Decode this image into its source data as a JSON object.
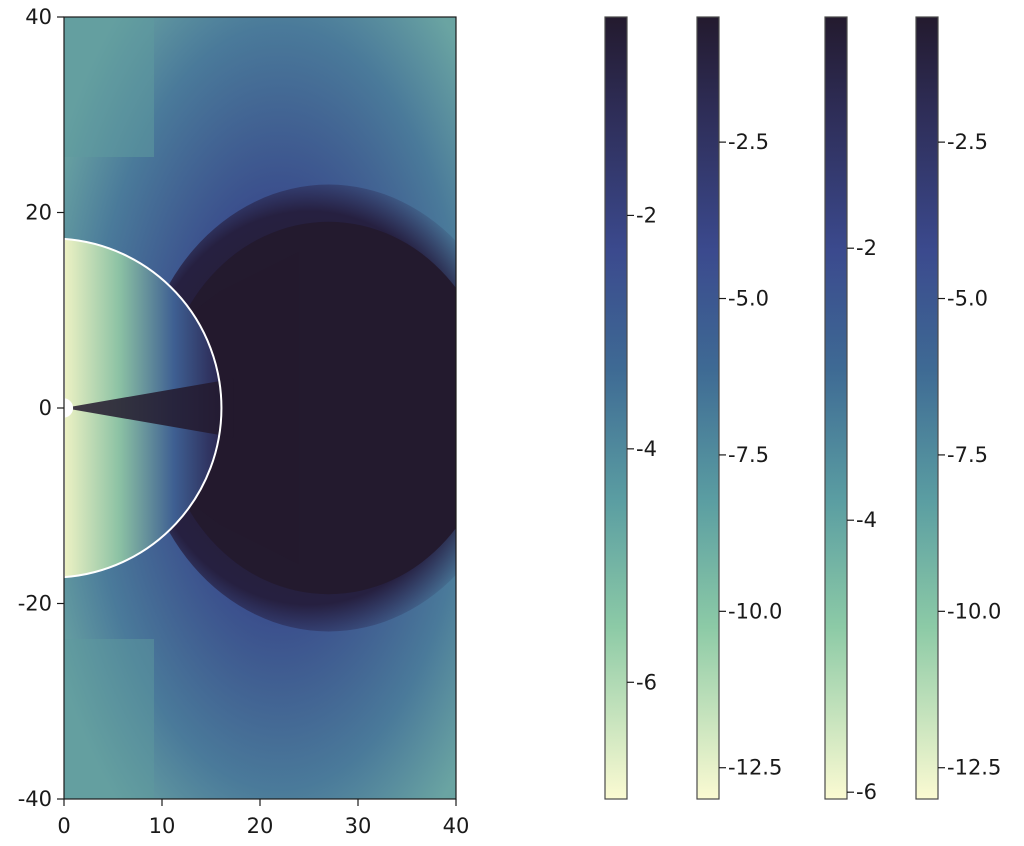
{
  "chart_data": [
    {
      "type": "heatmap",
      "title": "",
      "xlabel": "",
      "ylabel": "",
      "xlim": [
        0,
        40
      ],
      "ylim": [
        -40,
        40
      ],
      "xticks": [
        0,
        10,
        20,
        30,
        40
      ],
      "xtick_labels": [
        "0",
        "10",
        "20",
        "30",
        "40"
      ],
      "yticks": [
        40,
        20,
        0,
        -20,
        -40
      ],
      "ytick_labels": [
        "40",
        "20",
        "0",
        "-20",
        "-40"
      ],
      "colormap": "yellow-green-blue-dark (cmocean deep, reversed)",
      "features": {
        "inner_region_boundary_radius": 17.3,
        "central_hole_radius": 1.0,
        "dark_jet_lobe": {
          "center_x": 27,
          "center_y": 0,
          "radius_x": 17,
          "radius_y": 19
        }
      }
    },
    {
      "type": "colorbar",
      "range": [
        -7,
        -0.3
      ],
      "ticks": [
        -2,
        -4,
        -6
      ],
      "tick_labels": [
        "-2",
        "-4",
        "-6"
      ]
    },
    {
      "type": "colorbar",
      "range": [
        -13,
        -0.5
      ],
      "ticks": [
        -2.5,
        -5.0,
        -7.5,
        -10.0,
        -12.5
      ],
      "tick_labels": [
        "-2.5",
        "-5.0",
        "-7.5",
        "-10.0",
        "-12.5"
      ]
    },
    {
      "type": "colorbar",
      "range": [
        -6.05,
        -0.3
      ],
      "ticks": [
        -2,
        -4,
        -6
      ],
      "tick_labels": [
        "-2",
        "-4",
        "-6"
      ]
    },
    {
      "type": "colorbar",
      "range": [
        -13,
        -0.5
      ],
      "ticks": [
        -2.5,
        -5.0,
        -7.5,
        -10.0,
        -12.5
      ],
      "tick_labels": [
        "-2.5",
        "-5.0",
        "-7.5",
        "-10.0",
        "-12.5"
      ]
    }
  ],
  "colors": {
    "cmap_top": "#231a2e",
    "cmap_dark_blue": "#2e2d57",
    "cmap_blue": "#3b4a8e",
    "cmap_steel": "#3e6a94",
    "cmap_teal": "#5b9ea2",
    "cmap_green": "#8ccaa6",
    "cmap_bottom": "#fbfad2",
    "background_teal": "#5e9a9e",
    "boundary_line": "#ffffff"
  }
}
